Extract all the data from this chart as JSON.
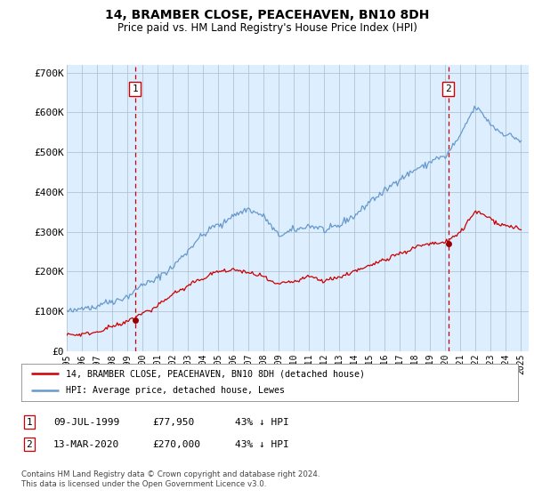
{
  "title": "14, BRAMBER CLOSE, PEACEHAVEN, BN10 8DH",
  "subtitle": "Price paid vs. HM Land Registry's House Price Index (HPI)",
  "ylabel_ticks": [
    "£0",
    "£100K",
    "£200K",
    "£300K",
    "£400K",
    "£500K",
    "£600K",
    "£700K"
  ],
  "ytick_values": [
    0,
    100000,
    200000,
    300000,
    400000,
    500000,
    600000,
    700000
  ],
  "ylim": [
    0,
    720000
  ],
  "xlim_start": 1995.0,
  "xlim_end": 2025.5,
  "bg_color": "#ddeeff",
  "hpi_color": "#6699cc",
  "price_color": "#cc0000",
  "marker_color": "#990000",
  "vline_color": "#cc0000",
  "sale1_date": 1999.52,
  "sale1_price": 77950,
  "sale2_date": 2020.19,
  "sale2_price": 270000,
  "legend_line1": "14, BRAMBER CLOSE, PEACEHAVEN, BN10 8DH (detached house)",
  "legend_line2": "HPI: Average price, detached house, Lewes",
  "footer": "Contains HM Land Registry data © Crown copyright and database right 2024.\nThis data is licensed under the Open Government Licence v3.0.",
  "xtick_years": [
    1995,
    1996,
    1997,
    1998,
    1999,
    2000,
    2001,
    2002,
    2003,
    2004,
    2005,
    2006,
    2007,
    2008,
    2009,
    2010,
    2011,
    2012,
    2013,
    2014,
    2015,
    2016,
    2017,
    2018,
    2019,
    2020,
    2021,
    2022,
    2023,
    2024,
    2025
  ],
  "hpi_base_years": [
    1995,
    1996,
    1997,
    1998,
    1999,
    2000,
    2001,
    2002,
    2003,
    2004,
    2005,
    2006,
    2007,
    2008,
    2009,
    2010,
    2011,
    2012,
    2013,
    2014,
    2015,
    2016,
    2017,
    2018,
    2019,
    2020,
    2021,
    2022,
    2023,
    2024,
    2025
  ],
  "hpi_base_vals": [
    95000,
    105000,
    115000,
    125000,
    138000,
    160000,
    185000,
    215000,
    255000,
    295000,
    315000,
    340000,
    360000,
    340000,
    295000,
    305000,
    315000,
    305000,
    315000,
    340000,
    375000,
    400000,
    430000,
    460000,
    475000,
    490000,
    545000,
    615000,
    570000,
    545000,
    530000
  ],
  "price_base_years": [
    1995,
    1996,
    1997,
    1998,
    1999,
    2000,
    2001,
    2002,
    2003,
    2004,
    2005,
    2006,
    2007,
    2008,
    2009,
    2010,
    2011,
    2012,
    2013,
    2014,
    2015,
    2016,
    2017,
    2018,
    2019,
    2020,
    2021,
    2022,
    2023,
    2024,
    2025
  ],
  "price_base_vals": [
    38000,
    42000,
    48000,
    58000,
    72000,
    95000,
    115000,
    140000,
    165000,
    185000,
    200000,
    205000,
    195000,
    185000,
    168000,
    175000,
    185000,
    178000,
    185000,
    200000,
    215000,
    230000,
    248000,
    262000,
    270000,
    270000,
    300000,
    350000,
    330000,
    315000,
    305000
  ]
}
